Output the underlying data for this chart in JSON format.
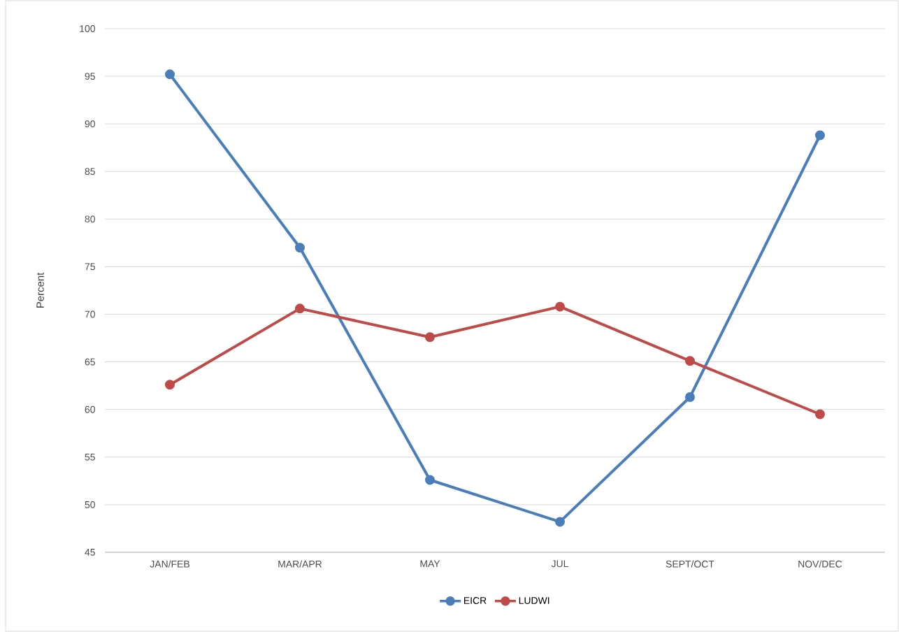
{
  "chart_data": {
    "type": "line",
    "ylabel": "Percent",
    "categories": [
      "JAN/FEB",
      "MAR/APR",
      "MAY",
      "JUL",
      "SEPT/OCT",
      "NOV/DEC"
    ],
    "series": [
      {
        "name": "EICR",
        "color": "#4a7ebb",
        "values": [
          95.2,
          77.0,
          52.6,
          48.2,
          61.3,
          88.8
        ]
      },
      {
        "name": "LUDWI",
        "color": "#be4b48",
        "values": [
          62.6,
          70.6,
          67.6,
          70.8,
          65.1,
          59.5
        ]
      }
    ],
    "ylim": [
      45,
      100
    ],
    "yticks": [
      45,
      50,
      55,
      60,
      65,
      70,
      75,
      80,
      85,
      90,
      95,
      100
    ],
    "grid": "y",
    "legend": "bottom",
    "marker": "circle",
    "line_style": "solid"
  }
}
